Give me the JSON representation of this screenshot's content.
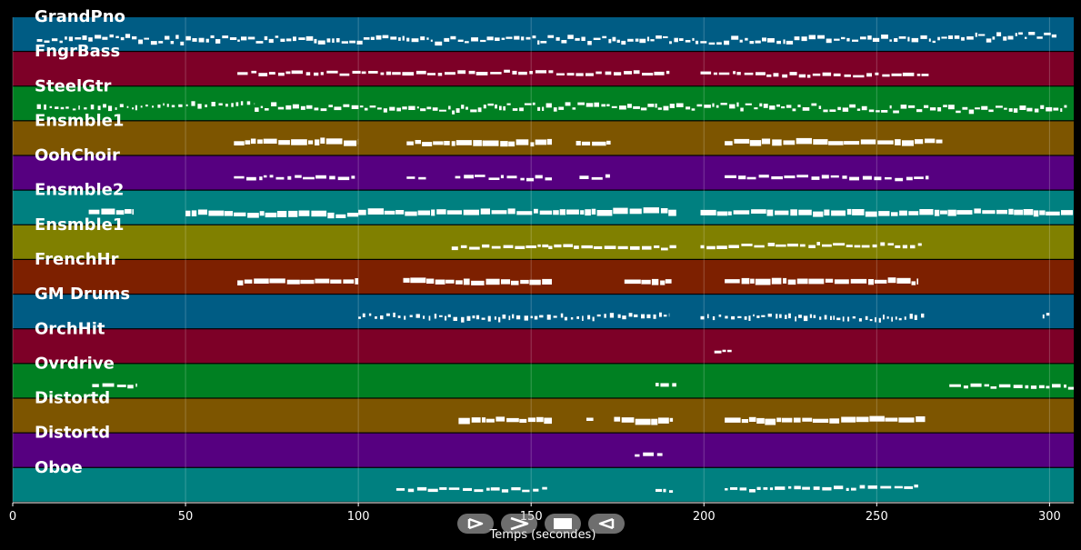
{
  "chart_data": {
    "type": "piano-roll",
    "xlabel": "Temps (secondes)",
    "xlim": [
      0,
      307
    ],
    "x_ticks": [
      0,
      50,
      100,
      150,
      200,
      250,
      300
    ],
    "grid": true,
    "note_color": "#ffffff",
    "tracks": [
      {
        "name": "GrandPno",
        "color": "#005c84",
        "segments": [
          [
            7,
            302,
            "dense"
          ]
        ]
      },
      {
        "name": "FngrBass",
        "color": "#7d0027",
        "segments": [
          [
            65,
            190,
            "line"
          ],
          [
            199,
            265,
            "line"
          ]
        ]
      },
      {
        "name": "SteelGtr",
        "color": "#008022",
        "segments": [
          [
            7,
            70,
            "sparse"
          ],
          [
            70,
            305,
            "dense"
          ]
        ]
      },
      {
        "name": "Ensmble1",
        "color": "#7d5500",
        "segments": [
          [
            64,
            100,
            "block"
          ],
          [
            114,
            156,
            "block"
          ],
          [
            163,
            173,
            "block"
          ],
          [
            206,
            269,
            "block"
          ]
        ]
      },
      {
        "name": "OohChoir",
        "color": "#560080",
        "segments": [
          [
            64,
            99,
            "line"
          ],
          [
            114,
            120,
            "line"
          ],
          [
            128,
            156,
            "line"
          ],
          [
            164,
            173,
            "line"
          ],
          [
            206,
            265,
            "line"
          ]
        ]
      },
      {
        "name": "Ensmble2",
        "color": "#008080",
        "segments": [
          [
            22,
            35,
            "block"
          ],
          [
            50,
            100,
            "block"
          ],
          [
            100,
            192,
            "block"
          ],
          [
            199,
            307,
            "block"
          ]
        ]
      },
      {
        "name": "Ensmble1",
        "color": "#808000",
        "segments": [
          [
            127,
            155,
            "line"
          ],
          [
            155,
            192,
            "line"
          ],
          [
            199,
            263,
            "line"
          ]
        ]
      },
      {
        "name": "FrenchHr",
        "color": "#7d2000",
        "segments": [
          [
            65,
            100,
            "block"
          ],
          [
            113,
            156,
            "block"
          ],
          [
            177,
            191,
            "block"
          ],
          [
            206,
            262,
            "block"
          ]
        ]
      },
      {
        "name": "GM Drums",
        "color": "#005c84",
        "segments": [
          [
            100,
            190,
            "sparse"
          ],
          [
            199,
            264,
            "sparse"
          ],
          [
            298,
            300,
            "sparse"
          ]
        ]
      },
      {
        "name": "OrchHit",
        "color": "#7d0027",
        "segments": [
          [
            203,
            208,
            "line"
          ]
        ]
      },
      {
        "name": "Ovrdrive",
        "color": "#008022",
        "segments": [
          [
            23,
            36,
            "line"
          ],
          [
            186,
            192,
            "line"
          ],
          [
            271,
            307,
            "line"
          ]
        ]
      },
      {
        "name": "Distortd",
        "color": "#7d5500",
        "segments": [
          [
            129,
            156,
            "block"
          ],
          [
            166,
            168,
            "line"
          ],
          [
            174,
            191,
            "block"
          ],
          [
            206,
            264,
            "block"
          ]
        ]
      },
      {
        "name": "Distortd",
        "color": "#560080",
        "segments": [
          [
            180,
            188,
            "line"
          ]
        ]
      },
      {
        "name": "Oboe",
        "color": "#008080",
        "segments": [
          [
            111,
            155,
            "line"
          ],
          [
            186,
            191,
            "line"
          ],
          [
            206,
            262,
            "line"
          ]
        ]
      }
    ]
  },
  "controls": {
    "play_forward_label": "play-forward",
    "fast_forward_label": "fast-forward",
    "stop_label": "stop",
    "play_backward_label": "play-backward"
  }
}
